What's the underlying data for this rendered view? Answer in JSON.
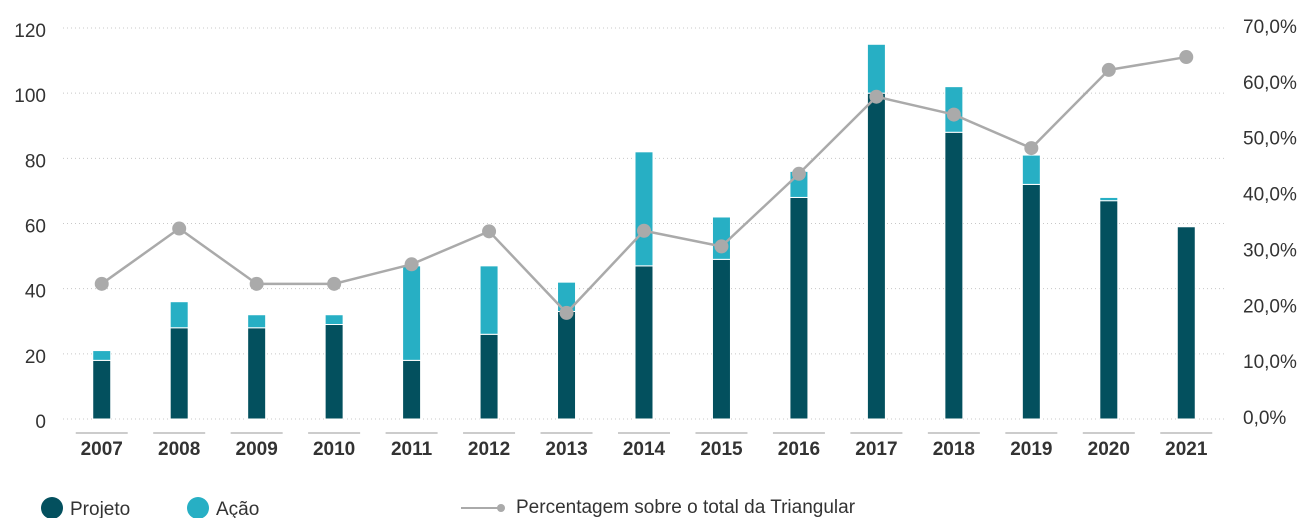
{
  "chart_data": {
    "type": "bar",
    "categories": [
      "2007",
      "2008",
      "2009",
      "2010",
      "2011",
      "2012",
      "2013",
      "2014",
      "2015",
      "2016",
      "2017",
      "2018",
      "2019",
      "2020",
      "2021"
    ],
    "stacked": true,
    "series": [
      {
        "name": "Projeto",
        "color": "#03505e",
        "values": [
          18,
          28,
          28,
          29,
          18,
          26,
          33,
          47,
          49,
          68,
          100,
          88,
          72,
          67,
          59
        ]
      },
      {
        "name": "Ação",
        "color": "#27afc4",
        "values": [
          3,
          8,
          4,
          3,
          29,
          21,
          9,
          35,
          13,
          8,
          15,
          14,
          9,
          1,
          0
        ]
      },
      {
        "name": "Percentagem sobre o total da Triangular",
        "color": "#aaaaaa",
        "type": "line",
        "axis": "y2",
        "values": [
          24.2,
          34.1,
          24.2,
          24.2,
          27.7,
          33.6,
          19.0,
          33.7,
          30.9,
          43.9,
          57.7,
          54.5,
          48.5,
          62.5,
          64.8
        ]
      }
    ],
    "ylim": [
      0,
      120
    ],
    "yticks": [
      0,
      20,
      40,
      60,
      80,
      100,
      120
    ],
    "y2lim": [
      0,
      70
    ],
    "y2ticks": [
      {
        "value": 0,
        "label": "0,0%"
      },
      {
        "value": 10,
        "label": "10,0%"
      },
      {
        "value": 20,
        "label": "20,0%"
      },
      {
        "value": 30,
        "label": "30,0%"
      },
      {
        "value": 40,
        "label": "40,0%"
      },
      {
        "value": 50,
        "label": "50,0%"
      },
      {
        "value": 60,
        "label": "60,0%"
      },
      {
        "value": 70,
        "label": "70,0%"
      }
    ],
    "grid": true,
    "legend": "bottom"
  }
}
